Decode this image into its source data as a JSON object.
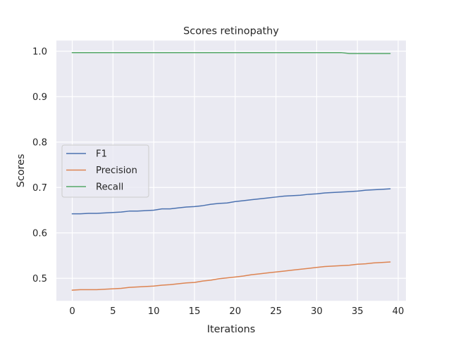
{
  "chart_data": {
    "type": "line",
    "title": "Scores retinopathy",
    "xlabel": "Iterations",
    "ylabel": "Scores",
    "xlim": [
      -1.95,
      40.95
    ],
    "ylim": [
      0.4505,
      1.0235
    ],
    "xticks": [
      0,
      5,
      10,
      15,
      20,
      25,
      30,
      35,
      40
    ],
    "yticks": [
      0.5,
      0.6,
      0.7,
      0.8,
      0.9,
      1.0
    ],
    "ytick_labels": [
      "0.5",
      "0.6",
      "0.7",
      "0.8",
      "0.9",
      "1.0"
    ],
    "grid": true,
    "legend_position": "center-left",
    "x": [
      0,
      1,
      2,
      3,
      4,
      5,
      6,
      7,
      8,
      9,
      10,
      11,
      12,
      13,
      14,
      15,
      16,
      17,
      18,
      19,
      20,
      21,
      22,
      23,
      24,
      25,
      26,
      27,
      28,
      29,
      30,
      31,
      32,
      33,
      34,
      35,
      36,
      37,
      38,
      39
    ],
    "series": [
      {
        "name": "F1",
        "color": "#4c72b0",
        "values": [
          0.642,
          0.642,
          0.643,
          0.643,
          0.644,
          0.645,
          0.646,
          0.648,
          0.648,
          0.649,
          0.65,
          0.653,
          0.653,
          0.655,
          0.657,
          0.658,
          0.66,
          0.663,
          0.665,
          0.666,
          0.669,
          0.671,
          0.673,
          0.675,
          0.677,
          0.679,
          0.681,
          0.682,
          0.683,
          0.685,
          0.686,
          0.688,
          0.689,
          0.69,
          0.691,
          0.692,
          0.694,
          0.695,
          0.696,
          0.697
        ]
      },
      {
        "name": "Precision",
        "color": "#dd8452",
        "values": [
          0.474,
          0.475,
          0.475,
          0.475,
          0.476,
          0.477,
          0.478,
          0.48,
          0.481,
          0.482,
          0.483,
          0.485,
          0.486,
          0.488,
          0.49,
          0.491,
          0.494,
          0.496,
          0.499,
          0.501,
          0.503,
          0.505,
          0.508,
          0.51,
          0.512,
          0.514,
          0.516,
          0.518,
          0.52,
          0.522,
          0.524,
          0.526,
          0.527,
          0.528,
          0.529,
          0.531,
          0.532,
          0.534,
          0.535,
          0.536
        ]
      },
      {
        "name": "Recall",
        "color": "#55a868",
        "values": [
          0.997,
          0.997,
          0.997,
          0.997,
          0.997,
          0.997,
          0.997,
          0.997,
          0.997,
          0.997,
          0.997,
          0.997,
          0.997,
          0.997,
          0.997,
          0.997,
          0.997,
          0.997,
          0.997,
          0.997,
          0.997,
          0.997,
          0.997,
          0.997,
          0.997,
          0.997,
          0.997,
          0.997,
          0.997,
          0.997,
          0.997,
          0.997,
          0.997,
          0.997,
          0.995,
          0.995,
          0.995,
          0.995,
          0.995,
          0.995
        ]
      }
    ]
  }
}
